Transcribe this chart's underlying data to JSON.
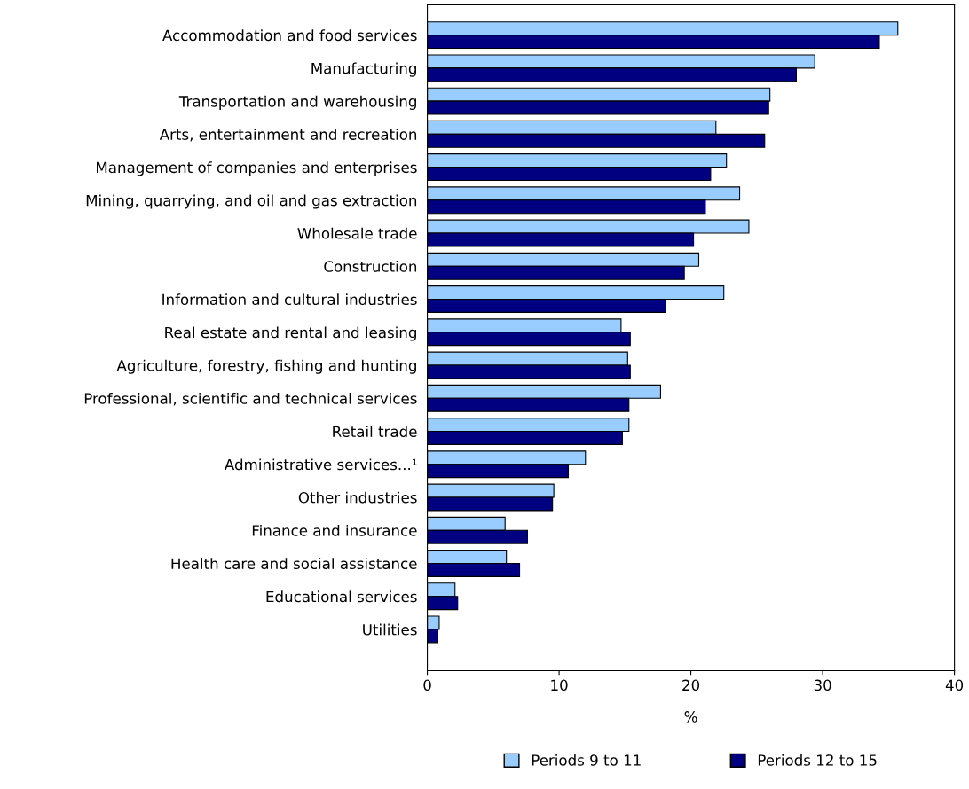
{
  "chart_data": {
    "type": "bar",
    "orientation": "horizontal",
    "xlabel": "%",
    "categories": [
      "Accommodation and food services",
      "Manufacturing",
      "Transportation and warehousing",
      "Arts, entertainment and recreation",
      "Management of companies and enterprises",
      "Mining, quarrying, and oil and gas extraction",
      "Wholesale trade",
      "Construction",
      "Information and cultural industries",
      "Real estate and rental and leasing",
      "Agriculture, forestry, fishing and hunting",
      "Professional, scientific and technical services",
      "Retail trade",
      "Administrative services...¹",
      "Other industries",
      "Finance and insurance",
      "Health care and social assistance",
      "Educational services",
      "Utilities"
    ],
    "series": [
      {
        "name": "Periods 9 to 11",
        "color": "#99ccff",
        "values": [
          35.7,
          29.4,
          26.0,
          21.9,
          22.7,
          23.7,
          24.4,
          20.6,
          22.5,
          14.7,
          15.2,
          17.7,
          15.3,
          12.0,
          9.6,
          5.9,
          6.0,
          2.1,
          0.9
        ]
      },
      {
        "name": "Periods 12 to 15",
        "color": "#000080",
        "values": [
          34.3,
          28.0,
          25.9,
          25.6,
          21.5,
          21.1,
          20.2,
          19.5,
          18.1,
          15.4,
          15.4,
          15.3,
          14.8,
          10.7,
          9.5,
          7.6,
          7.0,
          2.3,
          0.8
        ]
      }
    ],
    "xlim": [
      0,
      40
    ],
    "xticks": [
      0,
      10,
      20,
      30,
      40
    ],
    "grid": false,
    "legend": "bottom"
  }
}
